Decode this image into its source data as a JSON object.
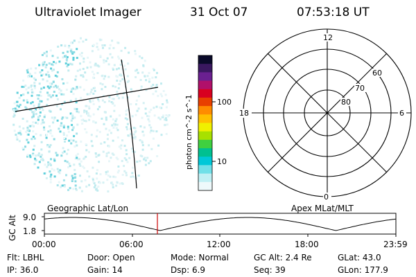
{
  "header": {
    "title": "Ultraviolet Imager",
    "date": "31 Oct 07",
    "time": "07:53:18 UT"
  },
  "colorbar": {
    "unit_label": "photon cm^-2 s^-1",
    "tick_labels": [
      "100",
      "10"
    ],
    "colors": [
      "#0a0a2a",
      "#3a1860",
      "#6a2090",
      "#b0106a",
      "#d80020",
      "#e84000",
      "#ff8c00",
      "#ffc000",
      "#f0f000",
      "#a8e000",
      "#40d040",
      "#00c090",
      "#00c8d8",
      "#70e0e8",
      "#c0f0f4",
      "#eef9fb"
    ]
  },
  "polar_plot": {
    "mlt_labels": {
      "top": "12",
      "left": "18",
      "right": "6",
      "bottom": "0"
    },
    "lat_labels": [
      "60",
      "70",
      "80"
    ]
  },
  "timeline": {
    "ylabel": "GC Alt",
    "y_ticks": [
      "9.0",
      "1.8"
    ],
    "left_caption": "Geographic Lat/Lon",
    "right_caption": "Apex  MLat/MLT",
    "x_ticks": [
      "00:00",
      "06:00",
      "12:00",
      "18:00",
      "23:59"
    ],
    "marker_color": "#cc0000"
  },
  "info": {
    "row1": {
      "flt": "Flt: LBHL",
      "door": "Door: Open",
      "mode": "Mode:  Normal",
      "gc_alt": "GC Alt: 2.4 Re",
      "glat": "GLat:   43.0"
    },
    "row2": {
      "ip": "IP: 36.0",
      "gain": "Gain: 14",
      "dsp": "Dsp:      6.9",
      "seq": "Seq: 39",
      "glon": "GLon: 177.9"
    }
  }
}
